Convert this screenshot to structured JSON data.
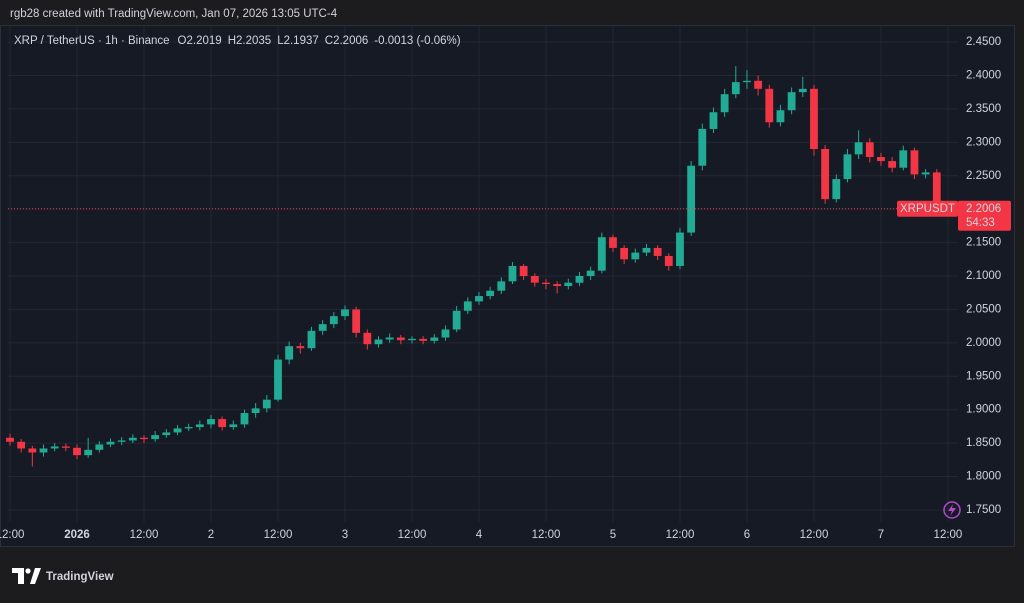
{
  "header": "rgb28 created with TradingView.com, Jan 07, 2026 13:05 UTC-4",
  "footer": "TradingView",
  "chart_data": {
    "type": "candlestick",
    "title": "XRP / TetherUS · 1h · Binance",
    "ohlc_labels": [
      "O",
      "H",
      "L",
      "C"
    ],
    "change": "-0.0013 (-0.06%)",
    "symbol": "XRPUSDT",
    "countdown": "54:33",
    "up_color": "#22ab94",
    "down_color": "#f23645",
    "grid": true,
    "x": [
      0,
      2,
      4,
      6,
      8,
      10,
      12,
      14,
      16,
      18,
      20,
      22,
      24,
      26,
      28,
      30,
      32,
      34,
      36,
      38,
      40,
      42,
      44,
      46,
      48,
      50,
      52,
      54,
      56,
      58,
      60,
      62,
      64,
      66,
      68,
      70,
      72,
      74,
      76,
      78,
      80,
      82,
      84,
      86,
      88,
      90,
      92,
      94,
      96,
      98,
      100,
      102,
      104,
      106,
      108,
      110,
      112,
      114,
      116,
      118,
      120,
      122,
      124,
      126,
      128,
      130,
      132,
      134,
      136,
      138,
      140,
      142,
      144,
      146,
      148,
      150,
      152,
      154,
      156,
      158,
      160,
      162,
      164,
      166,
      168
    ],
    "open": [
      1.858,
      1.852,
      1.842,
      1.836,
      1.842,
      1.845,
      1.843,
      1.832,
      1.84,
      1.848,
      1.852,
      1.854,
      1.858,
      1.856,
      1.862,
      1.866,
      1.872,
      1.874,
      1.878,
      1.886,
      1.874,
      1.878,
      1.895,
      1.902,
      1.915,
      1.975,
      1.995,
      1.992,
      2.018,
      2.028,
      2.04,
      2.05,
      2.015,
      1.998,
      2.005,
      2.008,
      2.004,
      2.006,
      2.003,
      2.008,
      2.02,
      2.048,
      2.062,
      2.07,
      2.078,
      2.092,
      2.115,
      2.1,
      2.09,
      2.088,
      2.085,
      2.09,
      2.1,
      2.108,
      2.158,
      2.142,
      2.125,
      2.135,
      2.142,
      2.13,
      2.115,
      2.165,
      2.265,
      2.32,
      2.345,
      2.372,
      2.39,
      2.392,
      2.38,
      2.33,
      2.348,
      2.375,
      2.38,
      2.29,
      2.215,
      2.245,
      2.282,
      2.3,
      2.278,
      2.272,
      2.262,
      2.288,
      2.252,
      2.255,
      2.2019
    ],
    "high": [
      1.864,
      1.856,
      1.846,
      1.848,
      1.85,
      1.849,
      1.848,
      1.858,
      1.853,
      1.857,
      1.859,
      1.863,
      1.862,
      1.868,
      1.871,
      1.877,
      1.879,
      1.884,
      1.892,
      1.89,
      1.884,
      1.9,
      1.91,
      1.922,
      1.982,
      2.002,
      2.0,
      2.024,
      2.034,
      2.046,
      2.056,
      2.054,
      2.02,
      2.01,
      2.014,
      2.012,
      2.01,
      2.01,
      2.013,
      2.026,
      2.055,
      2.068,
      2.076,
      2.084,
      2.098,
      2.121,
      2.118,
      2.104,
      2.095,
      2.092,
      2.096,
      2.106,
      2.114,
      2.165,
      2.162,
      2.146,
      2.141,
      2.148,
      2.146,
      2.134,
      2.172,
      2.272,
      2.328,
      2.352,
      2.38,
      2.414,
      2.408,
      2.4,
      2.386,
      2.356,
      2.382,
      2.398,
      2.386,
      2.296,
      2.252,
      2.29,
      2.318,
      2.306,
      2.284,
      2.278,
      2.295,
      2.292,
      2.26,
      2.26,
      2.2035
    ],
    "low": [
      1.846,
      1.836,
      1.815,
      1.83,
      1.838,
      1.838,
      1.826,
      1.828,
      1.836,
      1.844,
      1.847,
      1.85,
      1.85,
      1.852,
      1.858,
      1.862,
      1.868,
      1.869,
      1.872,
      1.869,
      1.87,
      1.873,
      1.888,
      1.896,
      1.912,
      1.968,
      1.984,
      1.988,
      2.012,
      2.022,
      2.034,
      2.008,
      1.99,
      1.993,
      2.0,
      1.998,
      1.999,
      1.998,
      1.999,
      2.003,
      2.016,
      2.043,
      2.057,
      2.065,
      2.073,
      2.088,
      2.094,
      2.084,
      2.08,
      2.074,
      2.08,
      2.085,
      2.094,
      2.104,
      2.136,
      2.118,
      2.12,
      2.13,
      2.124,
      2.108,
      2.11,
      2.16,
      2.258,
      2.314,
      2.338,
      2.366,
      2.38,
      2.37,
      2.322,
      2.324,
      2.342,
      2.368,
      2.28,
      2.208,
      2.21,
      2.24,
      2.275,
      2.27,
      2.265,
      2.255,
      2.258,
      2.245,
      2.246,
      2.196,
      2.1937
    ],
    "close": [
      1.852,
      1.842,
      1.836,
      1.842,
      1.845,
      1.843,
      1.832,
      1.84,
      1.848,
      1.852,
      1.854,
      1.858,
      1.856,
      1.862,
      1.866,
      1.872,
      1.874,
      1.878,
      1.886,
      1.874,
      1.878,
      1.895,
      1.902,
      1.915,
      1.975,
      1.995,
      1.992,
      2.018,
      2.028,
      2.04,
      2.05,
      2.015,
      1.998,
      2.005,
      2.008,
      2.004,
      2.006,
      2.003,
      2.008,
      2.02,
      2.048,
      2.062,
      2.07,
      2.078,
      2.092,
      2.115,
      2.1,
      2.09,
      2.088,
      2.085,
      2.09,
      2.1,
      2.108,
      2.158,
      2.142,
      2.125,
      2.135,
      2.142,
      2.13,
      2.115,
      2.165,
      2.265,
      2.32,
      2.345,
      2.372,
      2.39,
      2.392,
      2.38,
      2.33,
      2.348,
      2.375,
      2.38,
      2.29,
      2.215,
      2.245,
      2.282,
      2.3,
      2.278,
      2.272,
      2.262,
      2.288,
      2.252,
      2.255,
      2.2019,
      2.2006
    ],
    "xlim": [
      -0.36,
      169.8
    ],
    "xticks": [
      {
        "value": 0,
        "label": "12:00"
      },
      {
        "value": 12,
        "label": "2026"
      },
      {
        "value": 24,
        "label": "12:00"
      },
      {
        "value": 36,
        "label": "2"
      },
      {
        "value": 48,
        "label": "12:00"
      },
      {
        "value": 60,
        "label": "3"
      },
      {
        "value": 72,
        "label": "12:00"
      },
      {
        "value": 84,
        "label": "4"
      },
      {
        "value": 96,
        "label": "12:00"
      },
      {
        "value": 108,
        "label": "5"
      },
      {
        "value": 120,
        "label": "12:00"
      },
      {
        "value": 132,
        "label": "6"
      },
      {
        "value": 144,
        "label": "12:00"
      },
      {
        "value": 156,
        "label": "7"
      },
      {
        "value": 168,
        "label": "12:00"
      }
    ],
    "ylim": [
      1.732,
      2.474
    ],
    "yticks": [
      {
        "value": 1.75,
        "label": "1.7500"
      },
      {
        "value": 1.8,
        "label": "1.8000"
      },
      {
        "value": 1.85,
        "label": "1.8500"
      },
      {
        "value": 1.9,
        "label": "1.9000"
      },
      {
        "value": 1.95,
        "label": "1.9500"
      },
      {
        "value": 2.0,
        "label": "2.0000"
      },
      {
        "value": 2.05,
        "label": "2.0500"
      },
      {
        "value": 2.1,
        "label": "2.1000"
      },
      {
        "value": 2.15,
        "label": "2.1500"
      },
      {
        "value": 2.2,
        "label": "2.2000"
      },
      {
        "value": 2.25,
        "label": "2.2500"
      },
      {
        "value": 2.3,
        "label": "2.3000"
      },
      {
        "value": 2.35,
        "label": "2.3500"
      },
      {
        "value": 2.4,
        "label": "2.4000"
      },
      {
        "value": 2.45,
        "label": "2.4500"
      }
    ]
  }
}
